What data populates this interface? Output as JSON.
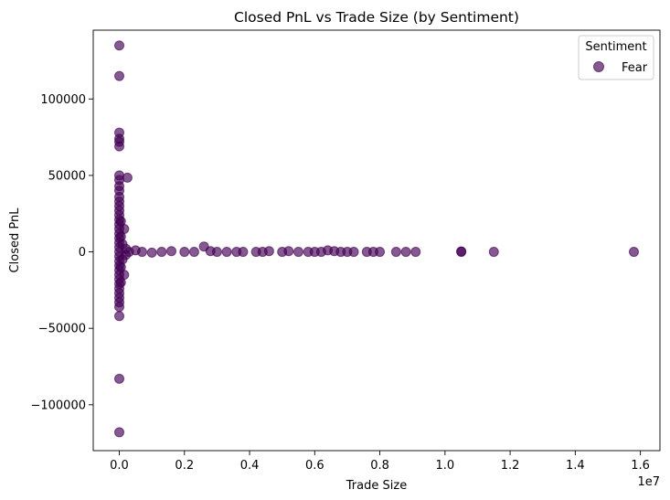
{
  "chart_data": {
    "type": "scatter",
    "title": "Closed PnL vs Trade Size (by Sentiment)",
    "xlabel": "Trade Size",
    "ylabel": "Closed PnL",
    "x_offset_label": "1e7",
    "xlim": [
      -0.08,
      1.66
    ],
    "ylim": [
      -130000,
      145000
    ],
    "x_ticks": [
      0.0,
      0.2,
      0.4,
      0.6,
      0.8,
      1.0,
      1.2,
      1.4,
      1.6
    ],
    "x_tick_labels": [
      "0.0",
      "0.2",
      "0.4",
      "0.6",
      "0.8",
      "1.0",
      "1.2",
      "1.4",
      "1.6"
    ],
    "y_ticks": [
      -100000,
      -50000,
      0,
      50000,
      100000
    ],
    "y_tick_labels": [
      "−100000",
      "−50000",
      "0",
      "50000",
      "100000"
    ],
    "grid": false,
    "legend": {
      "title": "Sentiment",
      "placement": "top-right",
      "entries": [
        {
          "label": "Fear",
          "color": "#440154"
        }
      ]
    },
    "marker_color": "#440154",
    "marker_alpha": 0.65,
    "series": [
      {
        "name": "Fear",
        "points": [
          [
            0.0,
            135000
          ],
          [
            0.0,
            115000
          ],
          [
            0.0,
            78000
          ],
          [
            0.0,
            74000
          ],
          [
            0.0,
            72000
          ],
          [
            0.0,
            69000
          ],
          [
            0.0,
            50000
          ],
          [
            0.0,
            47000
          ],
          [
            0.0,
            43000
          ],
          [
            0.0,
            40000
          ],
          [
            0.0,
            36000
          ],
          [
            0.0,
            33000
          ],
          [
            0.0,
            30000
          ],
          [
            0.0,
            27000
          ],
          [
            0.0,
            24000
          ],
          [
            0.0,
            21000
          ],
          [
            0.0,
            18000
          ],
          [
            0.0,
            15000
          ],
          [
            0.0,
            12000
          ],
          [
            0.0,
            9000
          ],
          [
            0.0,
            6000
          ],
          [
            0.0,
            3000
          ],
          [
            0.0,
            0
          ],
          [
            0.0,
            -3000
          ],
          [
            0.0,
            -6000
          ],
          [
            0.0,
            -9000
          ],
          [
            0.0,
            -12000
          ],
          [
            0.0,
            -15000
          ],
          [
            0.0,
            -18000
          ],
          [
            0.0,
            -21000
          ],
          [
            0.0,
            -24000
          ],
          [
            0.0,
            -27000
          ],
          [
            0.0,
            -30000
          ],
          [
            0.0,
            -33000
          ],
          [
            0.0,
            -36000
          ],
          [
            0.0,
            -42000
          ],
          [
            0.0,
            -83000
          ],
          [
            0.0,
            -118000
          ],
          [
            0.005,
            20000
          ],
          [
            0.005,
            10000
          ],
          [
            0.005,
            -10000
          ],
          [
            0.005,
            -20000
          ],
          [
            0.01,
            5000
          ],
          [
            0.01,
            -5000
          ],
          [
            0.015,
            15000
          ],
          [
            0.015,
            -15000
          ],
          [
            0.02,
            2000
          ],
          [
            0.02,
            -2000
          ],
          [
            0.025,
            48500
          ],
          [
            0.03,
            0
          ],
          [
            0.05,
            1000
          ],
          [
            0.07,
            0
          ],
          [
            0.1,
            -500
          ],
          [
            0.13,
            0
          ],
          [
            0.16,
            500
          ],
          [
            0.2,
            0
          ],
          [
            0.23,
            0
          ],
          [
            0.26,
            3500
          ],
          [
            0.28,
            500
          ],
          [
            0.3,
            0
          ],
          [
            0.33,
            0
          ],
          [
            0.36,
            0
          ],
          [
            0.38,
            0
          ],
          [
            0.42,
            0
          ],
          [
            0.44,
            0
          ],
          [
            0.46,
            500
          ],
          [
            0.5,
            0
          ],
          [
            0.52,
            500
          ],
          [
            0.55,
            0
          ],
          [
            0.58,
            0
          ],
          [
            0.6,
            0
          ],
          [
            0.62,
            0
          ],
          [
            0.64,
            1000
          ],
          [
            0.66,
            500
          ],
          [
            0.68,
            0
          ],
          [
            0.7,
            0
          ],
          [
            0.72,
            0
          ],
          [
            0.76,
            0
          ],
          [
            0.78,
            0
          ],
          [
            0.8,
            0
          ],
          [
            0.85,
            0
          ],
          [
            0.88,
            0
          ],
          [
            0.91,
            0
          ],
          [
            1.05,
            0
          ],
          [
            1.05,
            300
          ],
          [
            1.15,
            0
          ],
          [
            1.58,
            0
          ]
        ]
      }
    ]
  }
}
